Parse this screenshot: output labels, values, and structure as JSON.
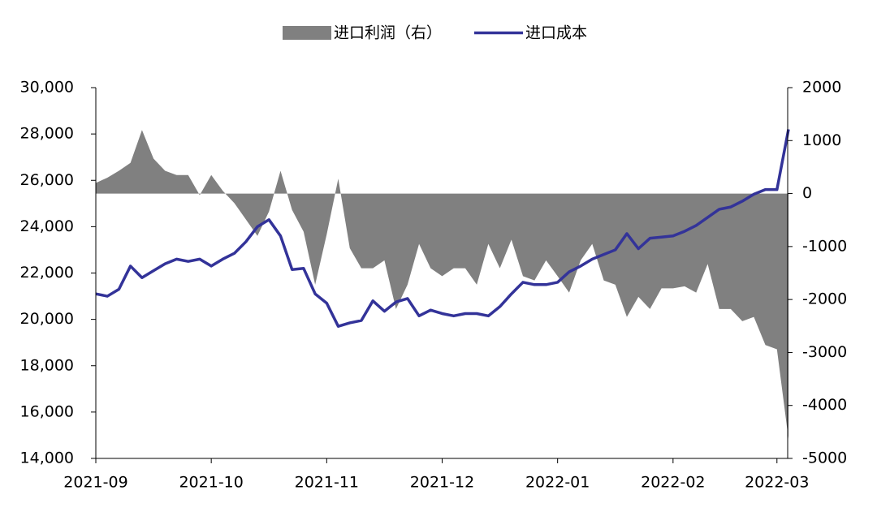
{
  "chart_data": {
    "type": "line",
    "categories": [
      "2021-09",
      null,
      null,
      null,
      null,
      null,
      null,
      null,
      null,
      null,
      "2021-10",
      null,
      null,
      null,
      null,
      null,
      null,
      null,
      null,
      null,
      "2021-11",
      null,
      null,
      null,
      null,
      null,
      null,
      null,
      null,
      null,
      "2021-12",
      null,
      null,
      null,
      null,
      null,
      null,
      null,
      null,
      null,
      "2022-01",
      null,
      null,
      null,
      null,
      null,
      null,
      null,
      null,
      null,
      "2022-02",
      null,
      null,
      null,
      null,
      null,
      null,
      null,
      null,
      "2022-03",
      null
    ],
    "series": [
      {
        "name": "进口利润（右）",
        "color": "#808080",
        "type": "area",
        "axis": "y2",
        "values": [
          200,
          300,
          430,
          580,
          1200,
          660,
          430,
          350,
          350,
          -30,
          350,
          50,
          -180,
          -490,
          -800,
          -340,
          430,
          -310,
          -720,
          -1720,
          -770,
          280,
          -1030,
          -1410,
          -1410,
          -1260,
          -2180,
          -1720,
          -950,
          -1410,
          -1560,
          -1410,
          -1410,
          -1720,
          -950,
          -1410,
          -870,
          -1560,
          -1640,
          -1260,
          -1560,
          -1870,
          -1260,
          -950,
          -1640,
          -1720,
          -2330,
          -1950,
          -2180,
          -1790,
          -1790,
          -1750,
          -1870,
          -1330,
          -2180,
          -2180,
          -2410,
          -2330,
          -2860,
          -2940,
          -4630
        ]
      },
      {
        "name": "进口成本",
        "color": "#333399",
        "type": "line",
        "values": [
          21100,
          21000,
          21300,
          22300,
          21800,
          22100,
          22400,
          22600,
          22500,
          22600,
          22300,
          22600,
          22850,
          23350,
          24000,
          24300,
          23600,
          22150,
          22200,
          21100,
          20700,
          19700,
          19850,
          19950,
          20800,
          20350,
          20750,
          20900,
          20150,
          20400,
          20250,
          20150,
          20250,
          20250,
          20150,
          20550,
          21100,
          21600,
          21500,
          21500,
          21600,
          22050,
          22300,
          22600,
          22800,
          23000,
          23700,
          23050,
          23500,
          23550,
          23600,
          23800,
          24050,
          24400,
          24750,
          24850,
          25100,
          25400,
          25600,
          25600,
          28200
        ]
      }
    ],
    "ylim": [
      14000,
      30000
    ],
    "yticks": [
      {
        "value": 14000,
        "label": "14,000"
      },
      {
        "value": 16000,
        "label": "16,000"
      },
      {
        "value": 18000,
        "label": "18,000"
      },
      {
        "value": 20000,
        "label": "20,000"
      },
      {
        "value": 22000,
        "label": "22,000"
      },
      {
        "value": 24000,
        "label": "24,000"
      },
      {
        "value": 26000,
        "label": "26,000"
      },
      {
        "value": 28000,
        "label": "28,000"
      },
      {
        "value": 30000,
        "label": "30,000"
      }
    ],
    "y2lim": [
      -5000,
      2000
    ],
    "y2ticks": [
      -5000,
      -4000,
      -3000,
      -2000,
      -1000,
      0,
      1000,
      2000
    ],
    "legend": "top"
  }
}
